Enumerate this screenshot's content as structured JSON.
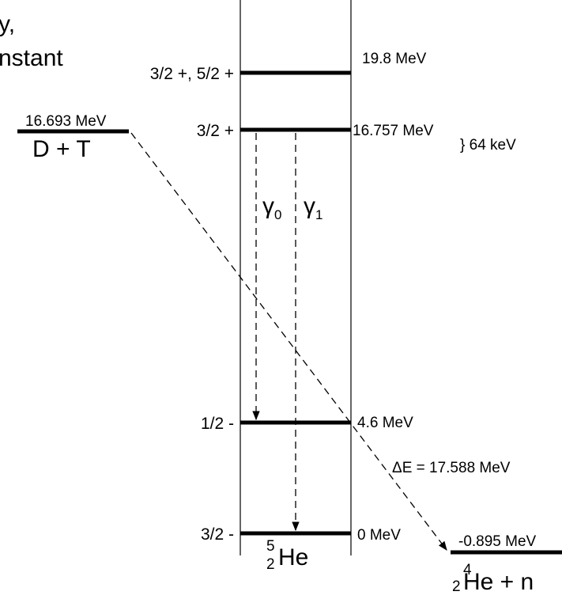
{
  "cut_text": {
    "line1": "y,",
    "line2": "nstant"
  },
  "levels": {
    "l198": {
      "spin": "3/2 +, 5/2 +",
      "energy": "19.8 MeV"
    },
    "l16757": {
      "spin": "3/2 +",
      "energy": "16.757 MeV",
      "gap": "} 64 keV"
    },
    "l46": {
      "spin": "1/2 -",
      "energy": "4.6 MeV"
    },
    "l0": {
      "spin": "3/2 -",
      "energy": "0 MeV"
    }
  },
  "entrance": {
    "energy": "16.693 MeV",
    "label": "D + T"
  },
  "exit": {
    "energy": "-0.895 MeV",
    "mass": "4",
    "charge": "2",
    "label": "He + n"
  },
  "compound": {
    "mass": "5",
    "charge": "2",
    "label": "He"
  },
  "gammas": {
    "g0": {
      "symbol": "γ",
      "sub": "0"
    },
    "g1": {
      "symbol": "γ",
      "sub": "1"
    }
  },
  "delta_e": "ΔE = 17.588 MeV"
}
